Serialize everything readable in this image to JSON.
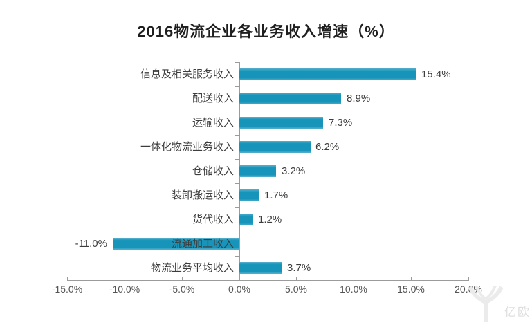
{
  "title": "2016物流企业各业务收入增速（%）",
  "watermark": {
    "logo": "yiou-logo",
    "text": "亿欧"
  },
  "colors": {
    "bar": "#1794ba",
    "axis": "#9b9b9b",
    "category_label": "#3d3d3d",
    "value_label": "#3d3d3d",
    "tick_label": "#555555",
    "title": "#1f1f1f",
    "watermark": "#e6e6e6"
  },
  "chart_data": {
    "type": "bar",
    "orientation": "horizontal",
    "title": "2016物流企业各业务收入增速（%）",
    "categories": [
      "信息及相关服务收入",
      "配送收入",
      "运输收入",
      "一体化物流业务收入",
      "仓储收入",
      "装卸搬运收入",
      "货代收入",
      "流通加工收入",
      "物流业务平均收入"
    ],
    "values": [
      15.4,
      8.9,
      7.3,
      6.2,
      3.2,
      1.7,
      1.2,
      -11.0,
      3.7
    ],
    "data_labels": [
      "15.4%",
      "8.9%",
      "7.3%",
      "6.2%",
      "3.2%",
      "1.7%",
      "1.2%",
      "-11.0%",
      "3.7%"
    ],
    "xlabel": "",
    "ylabel": "",
    "xlim": [
      -15,
      20
    ],
    "x_tick_values": [
      -15,
      -10,
      -5,
      0,
      5,
      10,
      15,
      20
    ],
    "x_tick_labels": [
      "-15.0%",
      "-10.0%",
      "-5.0%",
      "0.0%",
      "5.0%",
      "10.0%",
      "15.0%",
      "20.0%"
    ],
    "grid": false,
    "legend": false
  }
}
